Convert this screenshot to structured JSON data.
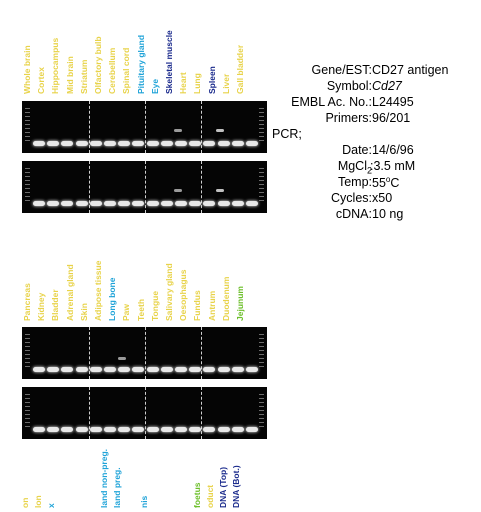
{
  "panel1": {
    "labels": [
      {
        "text": "Whole brain",
        "color": "#e8d34a"
      },
      {
        "text": "Cortex",
        "color": "#e8d34a"
      },
      {
        "text": "Hippocampus",
        "color": "#e8d34a"
      },
      {
        "text": "Mid brain",
        "color": "#e8d34a"
      },
      {
        "text": "Striatum",
        "color": "#e8d34a"
      },
      {
        "text": "Olfactory bulb",
        "color": "#e8d34a"
      },
      {
        "text": "Cerebellum",
        "color": "#e8d34a"
      },
      {
        "text": "Spinal cord",
        "color": "#e8d34a"
      },
      {
        "text": "Pituitary gland",
        "color": "#1fa3d8"
      },
      {
        "text": "Eye",
        "color": "#1fa3d8"
      },
      {
        "text": "Skeletal muscle",
        "color": "#1a2a8c"
      },
      {
        "text": "Heart",
        "color": "#e8d34a"
      },
      {
        "text": "Lung",
        "color": "#e8d34a"
      },
      {
        "text": "Spleen",
        "color": "#1a2a8c"
      },
      {
        "text": "Liver",
        "color": "#e8d34a"
      },
      {
        "text": "Gall bladder",
        "color": "#e8d34a"
      }
    ]
  },
  "panel2": {
    "labels": [
      {
        "text": "Pancreas",
        "color": "#e8d34a"
      },
      {
        "text": "Kidney",
        "color": "#e8d34a"
      },
      {
        "text": "Bladder",
        "color": "#e8d34a"
      },
      {
        "text": "Adrenal gland",
        "color": "#e8d34a"
      },
      {
        "text": "Skin",
        "color": "#e8d34a"
      },
      {
        "text": "Adipose tissue",
        "color": "#e8d34a"
      },
      {
        "text": "Long bone",
        "color": "#1fa3d8"
      },
      {
        "text": "Paw",
        "color": "#e8d34a"
      },
      {
        "text": "Teeth",
        "color": "#e8d34a"
      },
      {
        "text": "Tongue",
        "color": "#e8d34a"
      },
      {
        "text": "Salivary gland",
        "color": "#e8d34a"
      },
      {
        "text": "Oesophagus",
        "color": "#e8d34a"
      },
      {
        "text": "Fundus",
        "color": "#e8d34a"
      },
      {
        "text": "Antrum",
        "color": "#e8d34a"
      },
      {
        "text": "Duodenum",
        "color": "#e8d34a"
      },
      {
        "text": "Jejunum",
        "color": "#6cbf2a"
      }
    ]
  },
  "panel3": {
    "labels": [
      {
        "text": "on",
        "color": "#e8d34a"
      },
      {
        "text": "lon",
        "color": "#e8d34a"
      },
      {
        "text": "x",
        "color": "#1fa3d8"
      },
      {
        "text": "",
        "color": "#e8d34a"
      },
      {
        "text": "",
        "color": "#e8d34a"
      },
      {
        "text": "",
        "color": "#e8d34a"
      },
      {
        "text": "land non-preg.",
        "color": "#1fa3d8"
      },
      {
        "text": "land preg.",
        "color": "#1fa3d8"
      },
      {
        "text": "",
        "color": "#e8d34a"
      },
      {
        "text": "nis",
        "color": "#1fa3d8"
      },
      {
        "text": "",
        "color": "#e8d34a"
      },
      {
        "text": "",
        "color": "#e8d34a"
      },
      {
        "text": "",
        "color": "#e8d34a"
      },
      {
        "text": "foetus",
        "color": "#6cbf2a"
      },
      {
        "text": "oduct",
        "color": "#e8d34a"
      },
      {
        "text": "DNA (Top)",
        "color": "#1a2a8c"
      },
      {
        "text": "DNA (Bot.)",
        "color": "#1a2a8c"
      }
    ]
  },
  "info": {
    "gene_label": "Gene/EST:",
    "gene_value": "CD27 antigen",
    "symbol_label": "Symbol:",
    "symbol_value": "Cd27",
    "embl_label": "EMBL Ac. No.:",
    "embl_value": "L24495",
    "primers_label": "Primers:",
    "primers_value": "96/201",
    "pcr_label": "PCR;",
    "date_label": "Date:",
    "date_value": "14/6/96",
    "mgcl_label": "MgCl",
    "mgcl_sub": "2",
    "mgcl_value": ":3.5 mM",
    "temp_label": "Temp:",
    "temp_value": "55",
    "temp_sup": "o",
    "temp_unit": "C",
    "cycles_label": "Cycles:",
    "cycles_value": "x50",
    "cdna_label": "cDNA:",
    "cdna_value": "10 ng"
  }
}
